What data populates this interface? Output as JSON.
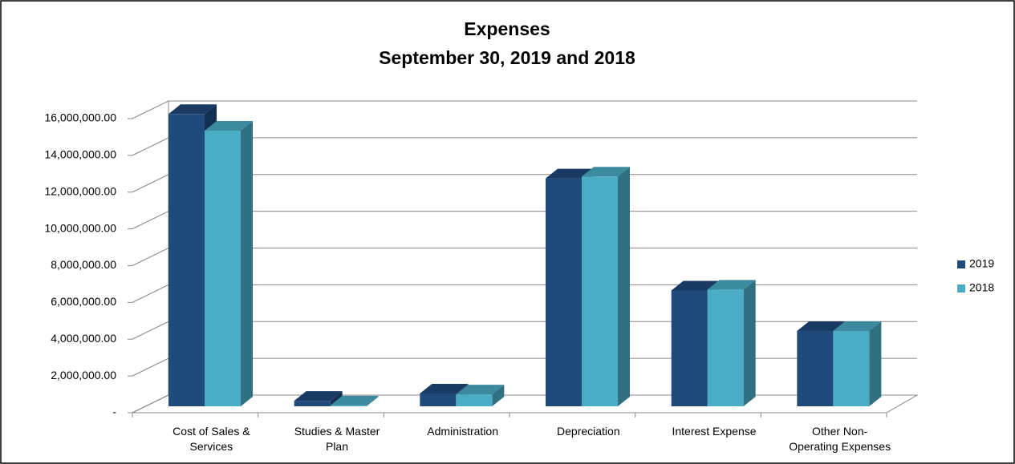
{
  "chart_data": {
    "type": "bar3d",
    "title": "Expenses",
    "subtitle": "September 30, 2019 and 2018",
    "categories": [
      "Cost of Sales & Services",
      "Studies & Master Plan",
      "Administration",
      "Depreciation",
      "Interest Expense",
      "Other Non-Operating Expenses"
    ],
    "series": [
      {
        "name": "2019",
        "color": "#1f4a7c",
        "values": [
          15900000,
          300000,
          700000,
          12400000,
          6300000,
          4100000
        ]
      },
      {
        "name": "2018",
        "color": "#4bacc6",
        "values": [
          15000000,
          50000,
          650000,
          12500000,
          6350000,
          4100000
        ]
      }
    ],
    "ylim": [
      0,
      16000000
    ],
    "yticks": [
      {
        "value": 0,
        "label": "-"
      },
      {
        "value": 2000000,
        "label": "2,000,000.00"
      },
      {
        "value": 4000000,
        "label": "4,000,000.00"
      },
      {
        "value": 6000000,
        "label": "6,000,000.00"
      },
      {
        "value": 8000000,
        "label": "8,000,000.00"
      },
      {
        "value": 10000000,
        "label": "10,000,000.00"
      },
      {
        "value": 12000000,
        "label": "12,000,000.00"
      },
      {
        "value": 14000000,
        "label": "14,000,000.00"
      },
      {
        "value": 16000000,
        "label": "16,000,000.00"
      }
    ],
    "grid": true,
    "legend": "right"
  }
}
